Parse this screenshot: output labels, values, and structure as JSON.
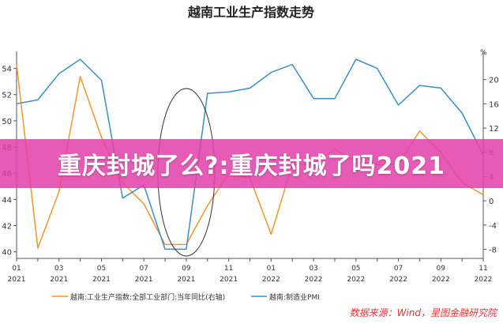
{
  "banner": {
    "text": "重庆封城了么?:重庆封城了吗2021"
  },
  "source": "数据来源：Wind，星图金融研究院",
  "colors": {
    "industrial": "#f0952e",
    "pmi": "#3a8fc4",
    "banner": "#e240aa",
    "source": "#e8312f"
  },
  "chart_data": {
    "type": "line",
    "title": "越南工业生产指数走势",
    "x": [
      "01",
      "02",
      "03",
      "04",
      "05",
      "06",
      "07",
      "08",
      "09",
      "10",
      "11",
      "12",
      "01",
      "02",
      "03",
      "04",
      "05",
      "06",
      "07",
      "08",
      "09",
      "10",
      "11"
    ],
    "x_tick_labels": [
      {
        "month": "01",
        "year": "2021"
      },
      {
        "month": "03",
        "year": "2021"
      },
      {
        "month": "05",
        "year": "2021"
      },
      {
        "month": "07",
        "year": "2021"
      },
      {
        "month": "09",
        "year": "2021"
      },
      {
        "month": "11",
        "year": "2021"
      },
      {
        "month": "01",
        "year": "2022"
      },
      {
        "month": "03",
        "year": "2022"
      },
      {
        "month": "05",
        "year": "2022"
      },
      {
        "month": "07",
        "year": "2022"
      },
      {
        "month": "09",
        "year": "2022"
      },
      {
        "month": "11",
        "year": "2022"
      }
    ],
    "left_axis": {
      "ylim": [
        39.5,
        55
      ],
      "ticks": [
        40,
        42,
        44,
        46,
        48,
        50,
        52,
        54
      ]
    },
    "right_axis": {
      "unit": "%",
      "ylim": [
        -9.5,
        24
      ],
      "ticks": [
        -8,
        -4,
        0,
        4,
        8,
        12,
        16,
        20
      ]
    },
    "series": [
      {
        "name": "越南:工业生产指数:全部工业部门:当年同比(右轴)",
        "axis": "right",
        "values": [
          22.5,
          -7.8,
          1.5,
          20.5,
          10.5,
          3.0,
          -0.5,
          -7.2,
          -7.2,
          -0.8,
          4.5,
          3.8,
          -5.5,
          6.0,
          6.0,
          8.5,
          6.5,
          6.0,
          6.0,
          11.5,
          8.0,
          3.0,
          1.0
        ]
      },
      {
        "name": "越南:制造业PMI",
        "axis": "left",
        "values": [
          51.3,
          51.6,
          53.6,
          54.7,
          53.1,
          44.1,
          45.1,
          40.2,
          40.2,
          52.1,
          52.2,
          52.5,
          53.7,
          54.3,
          51.7,
          51.7,
          54.7,
          54.0,
          51.2,
          52.7,
          52.5,
          50.6,
          47.4
        ]
      }
    ],
    "annotation": {
      "type": "ellipse",
      "around": [
        "08",
        "09",
        "10"
      ]
    }
  }
}
